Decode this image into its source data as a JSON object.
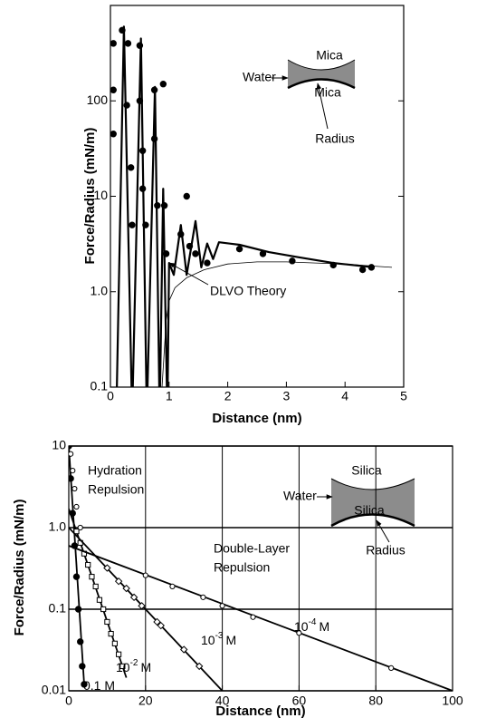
{
  "chart_data": [
    {
      "type": "line",
      "x_label": "Distance (nm)",
      "y_label": "Force/Radius (mN/m)",
      "xlim": [
        0,
        5
      ],
      "ylim": [
        0.1,
        1000
      ],
      "log_y": true,
      "grid": false,
      "xticks": [
        0,
        1,
        2,
        3,
        4,
        5
      ],
      "yticks": [
        0.1,
        {
          "value": 1,
          "label": "1.0"
        },
        10,
        100
      ],
      "annotations": [
        "DLVO Theory"
      ],
      "inset_labels": [
        "Mica",
        "Water",
        "Mica",
        "Radius"
      ],
      "series": [
        {
          "color": "#000000",
          "line": true,
          "width": 2.2,
          "x": [
            0.1,
            0.23,
            0.37,
            0.52,
            0.62,
            0.76,
            0.84,
            0.9,
            0.97,
            1.0,
            1.08,
            1.2,
            1.3,
            1.45,
            1.55,
            1.65,
            1.75,
            1.85,
            2.2,
            2.7,
            3.2,
            3.8,
            4.5
          ],
          "values": [
            0.05,
            600,
            0.05,
            450,
            0.05,
            140,
            0.05,
            12,
            0.05,
            2,
            1.5,
            5,
            1.5,
            5.5,
            1.8,
            3.2,
            2.2,
            3.3,
            3.1,
            2.6,
            2.3,
            2.0,
            1.8
          ]
        },
        {
          "color": "#000000",
          "marker": "circle-filled",
          "x": [
            0.05,
            0.05,
            0.05,
            0.2,
            0.3,
            0.28,
            0.35,
            0.37,
            0.5,
            0.5,
            0.55,
            0.55,
            0.6,
            0.75,
            0.75,
            0.8,
            0.9,
            0.92,
            0.95,
            1.3,
            1.2,
            1.35,
            1.45,
            1.65,
            2.2,
            2.6,
            3.1,
            3.8,
            4.3,
            4.45
          ],
          "values": [
            400,
            130,
            45,
            550,
            400,
            90,
            20,
            5,
            380,
            100,
            30,
            12,
            5,
            130,
            40,
            8,
            150,
            8,
            2.5,
            10,
            4,
            3,
            2.5,
            2.0,
            2.8,
            2.5,
            2.1,
            1.9,
            1.7,
            1.8
          ]
        },
        {
          "color": "#000000",
          "line": true,
          "width": 0.8,
          "x": [
            0.88,
            0.95,
            1.0,
            1.1,
            1.3,
            1.6,
            2.0,
            2.5,
            3.0,
            3.5,
            4.0,
            4.5,
            4.8
          ],
          "values": [
            0.1,
            0.5,
            0.8,
            1.1,
            1.4,
            1.7,
            1.95,
            2.05,
            2.05,
            2.0,
            1.95,
            1.85,
            1.8
          ]
        }
      ]
    },
    {
      "type": "line",
      "x_label": "Distance (nm)",
      "y_label": "Force/Radius  (mN/m)",
      "xlim": [
        0,
        100
      ],
      "ylim": [
        0.01,
        10
      ],
      "log_y": true,
      "grid": true,
      "xticks": [
        0,
        20,
        40,
        60,
        80,
        100
      ],
      "yticks": [
        0.01,
        0.1,
        {
          "value": 1,
          "label": "1.0"
        },
        10
      ],
      "annotations": [
        "Hydration",
        "Repulsion",
        "Double-Layer",
        "Repulsion"
      ],
      "inset_labels": [
        "Silica",
        "Water",
        "Silica",
        "Radius"
      ],
      "series": [
        {
          "color": "#000000",
          "marker": "circle-filled",
          "label": [
            "0.1 M"
          ],
          "x": [
            0,
            0.5,
            1,
            1.5,
            2,
            2.5,
            3,
            3.5,
            4
          ],
          "values": [
            10,
            4,
            1.5,
            0.6,
            0.25,
            0.1,
            0.04,
            0.02,
            0.012
          ],
          "fit": {
            "x": [
              0,
              4
            ],
            "values": [
              10,
              0.012
            ]
          }
        },
        {
          "color": "#000000",
          "marker": "square",
          "label": [
            "10",
            "-2",
            "M"
          ],
          "x": [
            2,
            3,
            4,
            5,
            6,
            7,
            8,
            9,
            10,
            11,
            12,
            13,
            14
          ],
          "values": [
            0.9,
            0.65,
            0.48,
            0.35,
            0.25,
            0.19,
            0.13,
            0.1,
            0.07,
            0.05,
            0.038,
            0.028,
            0.02
          ],
          "fit": {
            "x": [
              0,
              15
            ],
            "values": [
              1.7,
              0.0145
            ]
          }
        },
        {
          "color": "#000000",
          "marker": "diamond",
          "label": [
            "10",
            "-3",
            "M"
          ],
          "x": [
            10,
            13,
            15,
            17,
            19,
            23,
            24,
            30,
            34
          ],
          "values": [
            0.32,
            0.22,
            0.18,
            0.14,
            0.11,
            0.07,
            0.063,
            0.032,
            0.02
          ],
          "fit": {
            "x": [
              0,
              40
            ],
            "values": [
              1,
              0.01
            ]
          }
        },
        {
          "color": "#000000",
          "marker": "circle",
          "label": [
            "10",
            "-4",
            "M"
          ],
          "x": [
            0.5,
            1,
            1.5,
            2,
            3,
            20,
            27,
            35,
            40,
            48,
            60,
            84
          ],
          "values": [
            8,
            5,
            3,
            1.8,
            1.0,
            0.26,
            0.19,
            0.14,
            0.11,
            0.08,
            0.051,
            0.019
          ],
          "fit": {
            "x": [
              0,
              100
            ],
            "values": [
              0.6,
              0.01
            ]
          }
        }
      ]
    }
  ]
}
